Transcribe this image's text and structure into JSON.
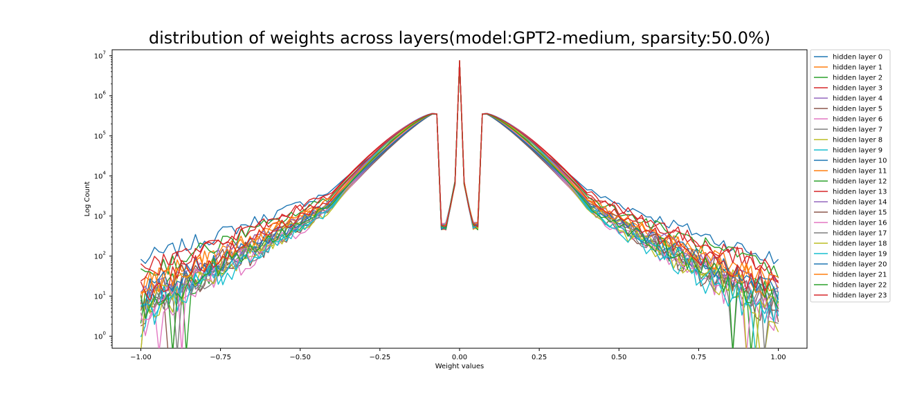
{
  "chart_data": {
    "type": "line",
    "title": "distribution of weights across layers(model:GPT2-medium, sparsity:50.0%)",
    "xlabel": "Weight values",
    "ylabel": "Log Count",
    "xlim": [
      -1.09,
      1.09
    ],
    "ylim_log10": [
      -0.3,
      7.15
    ],
    "y_scale": "log",
    "grid": false,
    "legend_position": "outside-right",
    "x_ticks": [
      {
        "value": -1.0,
        "label": "−1.00"
      },
      {
        "value": -0.75,
        "label": "−0.75"
      },
      {
        "value": -0.5,
        "label": "−0.50"
      },
      {
        "value": -0.25,
        "label": "−0.25"
      },
      {
        "value": 0.0,
        "label": "0.00"
      },
      {
        "value": 0.25,
        "label": "0.25"
      },
      {
        "value": 0.5,
        "label": "0.50"
      },
      {
        "value": 0.75,
        "label": "0.75"
      },
      {
        "value": 1.0,
        "label": "1.00"
      }
    ],
    "y_ticks": [
      {
        "value": 1,
        "base": "10",
        "exp": "0"
      },
      {
        "value": 10,
        "base": "10",
        "exp": "1"
      },
      {
        "value": 100,
        "base": "10",
        "exp": "2"
      },
      {
        "value": 1000,
        "base": "10",
        "exp": "3"
      },
      {
        "value": 10000,
        "base": "10",
        "exp": "4"
      },
      {
        "value": 100000,
        "base": "10",
        "exp": "5"
      },
      {
        "value": 1000000,
        "base": "10",
        "exp": "6"
      },
      {
        "value": 10000000,
        "base": "10",
        "exp": "7"
      }
    ],
    "series": [
      {
        "name": "hidden layer 0",
        "color": "#1f77b4",
        "edge": 75,
        "p40": 4500
      },
      {
        "name": "hidden layer 1",
        "color": "#ff7f0e",
        "edge": 14,
        "p40": 2600
      },
      {
        "name": "hidden layer 2",
        "color": "#2ca02c",
        "edge": 6,
        "p40": 2000
      },
      {
        "name": "hidden layer 3",
        "color": "#d62728",
        "edge": 42,
        "p40": 3800
      },
      {
        "name": "hidden layer 4",
        "color": "#9467bd",
        "edge": 8,
        "p40": 2100
      },
      {
        "name": "hidden layer 5",
        "color": "#8c564b",
        "edge": 4,
        "p40": 1700
      },
      {
        "name": "hidden layer 6",
        "color": "#e377c2",
        "edge": 3,
        "p40": 1600
      },
      {
        "name": "hidden layer 7",
        "color": "#7f7f7f",
        "edge": 5,
        "p40": 1700
      },
      {
        "name": "hidden layer 8",
        "color": "#bcbd22",
        "edge": 4,
        "p40": 1500
      },
      {
        "name": "hidden layer 9",
        "color": "#17becf",
        "edge": 3,
        "p40": 1600
      },
      {
        "name": "hidden layer 10",
        "color": "#1f77b4",
        "edge": 8,
        "p40": 2000
      },
      {
        "name": "hidden layer 11",
        "color": "#ff7f0e",
        "edge": 16,
        "p40": 2400
      },
      {
        "name": "hidden layer 12",
        "color": "#2ca02c",
        "edge": 36,
        "p40": 3200
      },
      {
        "name": "hidden layer 13",
        "color": "#d62728",
        "edge": 40,
        "p40": 3500
      },
      {
        "name": "hidden layer 14",
        "color": "#9467bd",
        "edge": 12,
        "p40": 2300
      },
      {
        "name": "hidden layer 15",
        "color": "#8c564b",
        "edge": 9,
        "p40": 2200
      },
      {
        "name": "hidden layer 16",
        "color": "#e377c2",
        "edge": 5,
        "p40": 1900
      },
      {
        "name": "hidden layer 17",
        "color": "#7f7f7f",
        "edge": 6,
        "p40": 2000
      },
      {
        "name": "hidden layer 18",
        "color": "#bcbd22",
        "edge": 7,
        "p40": 2100
      },
      {
        "name": "hidden layer 19",
        "color": "#17becf",
        "edge": 4,
        "p40": 1800
      },
      {
        "name": "hidden layer 20",
        "color": "#1f77b4",
        "edge": 10,
        "p40": 2300
      },
      {
        "name": "hidden layer 21",
        "color": "#ff7f0e",
        "edge": 15,
        "p40": 2600
      },
      {
        "name": "hidden layer 22",
        "color": "#2ca02c",
        "edge": 6,
        "p40": 2000
      },
      {
        "name": "hidden layer 23",
        "color": "#d62728",
        "edge": 14,
        "p40": 2800
      }
    ]
  }
}
